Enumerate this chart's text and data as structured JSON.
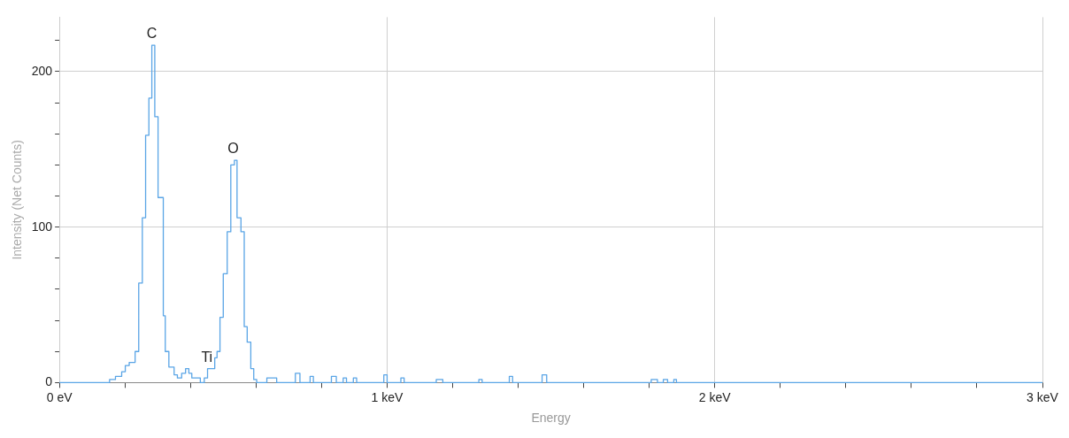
{
  "chart_data": {
    "type": "step",
    "xlabel": "Energy",
    "ylabel": "Intensity (Net Counts)",
    "x": [
      0,
      0.153,
      0.171,
      0.19,
      0.201,
      0.213,
      0.231,
      0.242,
      0.253,
      0.263,
      0.273,
      0.282,
      0.291,
      0.301,
      0.317,
      0.323,
      0.334,
      0.35,
      0.36,
      0.373,
      0.385,
      0.395,
      0.404,
      0.43,
      0.442,
      0.452,
      0.474,
      0.481,
      0.49,
      0.5,
      0.512,
      0.523,
      0.534,
      0.542,
      0.554,
      0.564,
      0.573,
      0.584,
      0.593,
      0.602,
      0.633,
      0.663,
      0.72,
      0.734,
      0.765,
      0.775,
      0.83,
      0.845,
      0.866,
      0.876,
      0.897,
      0.907,
      0.99,
      1.0,
      1.042,
      1.052,
      1.15,
      1.17,
      1.28,
      1.29,
      1.373,
      1.383,
      1.473,
      1.487,
      1.806,
      1.825,
      1.843,
      1.856,
      1.875,
      1.883,
      3
    ],
    "series": [
      {
        "color": "#5aa5e6",
        "values": [
          0,
          2,
          4,
          7,
          11,
          13,
          20,
          64,
          106,
          159,
          183,
          217,
          171,
          119,
          43,
          20,
          10,
          5,
          3,
          6,
          9,
          6,
          3,
          0,
          3,
          9,
          16,
          20,
          42,
          70,
          97,
          140,
          143,
          106,
          97,
          36,
          26,
          9,
          2,
          0,
          3,
          0,
          6,
          0,
          4,
          0,
          4,
          0,
          3,
          0,
          3,
          0,
          5,
          0,
          3,
          0,
          2,
          0,
          2,
          0,
          4,
          0,
          5,
          0,
          2,
          0,
          2,
          0,
          2,
          0,
          0
        ]
      }
    ],
    "xlim": [
      0,
      3
    ],
    "xticks": [
      {
        "value": 0,
        "label": "0 eV"
      },
      {
        "value": 0.2,
        "label": null
      },
      {
        "value": 0.4,
        "label": null
      },
      {
        "value": 0.6,
        "label": null
      },
      {
        "value": 0.8,
        "label": null
      },
      {
        "value": 1,
        "label": "1 keV"
      },
      {
        "value": 1.2,
        "label": null
      },
      {
        "value": 1.4,
        "label": null
      },
      {
        "value": 1.6,
        "label": null
      },
      {
        "value": 1.8,
        "label": null
      },
      {
        "value": 2,
        "label": "2 keV"
      },
      {
        "value": 2.2,
        "label": null
      },
      {
        "value": 2.4,
        "label": null
      },
      {
        "value": 2.6,
        "label": null
      },
      {
        "value": 2.8,
        "label": null
      },
      {
        "value": 3,
        "label": "3 keV"
      }
    ],
    "ylim": [
      0,
      235
    ],
    "yticks": [
      0,
      {
        "value": 20,
        "label": null
      },
      {
        "value": 40,
        "label": null
      },
      {
        "value": 60,
        "label": null
      },
      {
        "value": 80,
        "label": null
      },
      100,
      {
        "value": 120,
        "label": null
      },
      {
        "value": 140,
        "label": null
      },
      {
        "value": 160,
        "label": null
      },
      {
        "value": 180,
        "label": null
      },
      200,
      {
        "value": 220,
        "label": null
      }
    ],
    "grid": true,
    "annotations": [
      {
        "text": "C",
        "x": 0.282,
        "y": 217
      },
      {
        "text": "O",
        "x": 0.53,
        "y": 143
      },
      {
        "text": "Ti",
        "x": 0.45,
        "y": 9
      }
    ]
  }
}
